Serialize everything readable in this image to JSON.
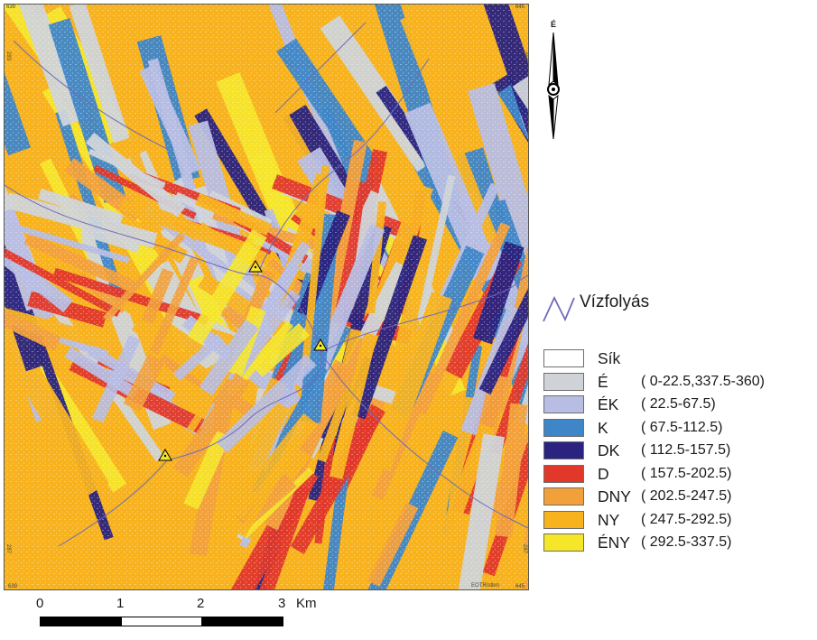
{
  "map": {
    "corner_labels": {
      "top_left": "639",
      "top_right": "645",
      "left_top": "293",
      "right_top": "293",
      "left_bottom": "287",
      "right_bottom": "287",
      "bottom_left": "639",
      "bottom_right": "645",
      "credit": "EOTR/stkm"
    },
    "colors": {
      "sik": "#ffffff",
      "E": "#cfd3d8",
      "EK": "#b7bde3",
      "K": "#3f86c8",
      "DK": "#2a2380",
      "D": "#e2382a",
      "DNY": "#f2a03a",
      "NY": "#f7b21d",
      "ENY": "#f5e62a",
      "stream": "#6f6cba"
    },
    "summit_icon": "triangle-marker-icon"
  },
  "north_arrow": {
    "label": "É",
    "icon": "north-arrow-icon"
  },
  "legend": {
    "stream_label": "Vízfolyás",
    "classes": [
      {
        "code": "Sík",
        "range": "",
        "color": "#ffffff"
      },
      {
        "code": "É",
        "range": "( 0-22.5,337.5-360)",
        "color": "#cfd3d8"
      },
      {
        "code": "ÉK",
        "range": "( 22.5-67.5)",
        "color": "#b7bde3"
      },
      {
        "code": "K",
        "range": "( 67.5-112.5)",
        "color": "#3f86c8"
      },
      {
        "code": "DK",
        "range": "( 112.5-157.5)",
        "color": "#2a2380"
      },
      {
        "code": "D",
        "range": "( 157.5-202.5)",
        "color": "#e2382a"
      },
      {
        "code": "DNY",
        "range": "( 202.5-247.5)",
        "color": "#f2a03a"
      },
      {
        "code": "NY",
        "range": "( 247.5-292.5)",
        "color": "#f7b21d"
      },
      {
        "code": "ÉNY",
        "range": "( 292.5-337.5)",
        "color": "#f5e62a"
      }
    ]
  },
  "scalebar": {
    "ticks": [
      "0",
      "1",
      "2",
      "3"
    ],
    "unit": "Km"
  }
}
